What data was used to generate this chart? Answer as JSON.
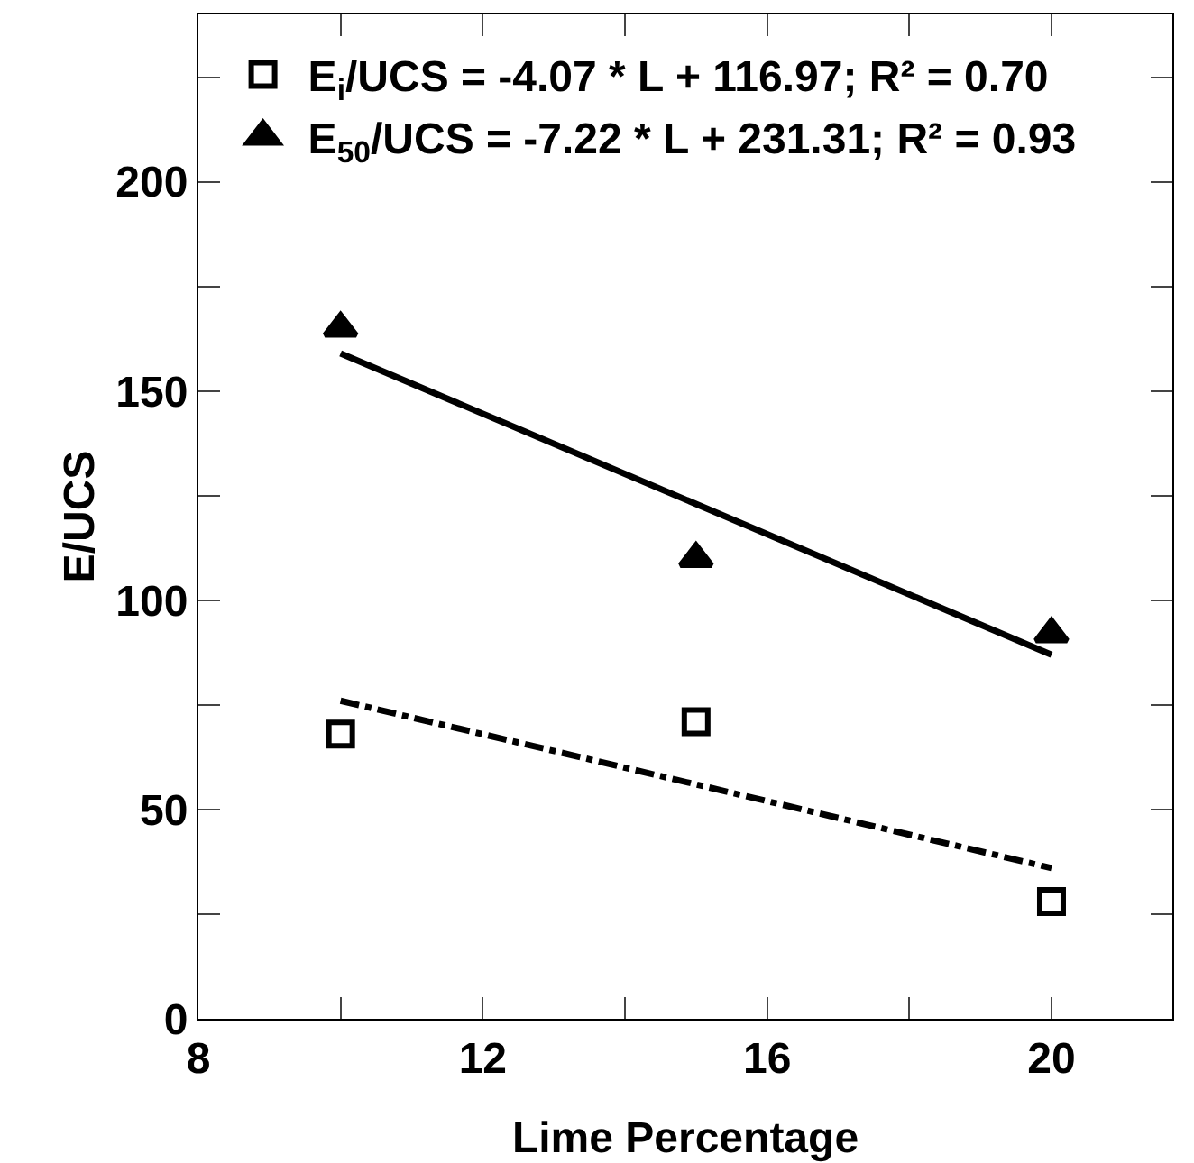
{
  "chart_data": {
    "type": "scatter",
    "xlabel": "Lime Percentage",
    "ylabel": "E/UCS",
    "x": [
      10,
      15,
      20
    ],
    "series": [
      {
        "name": "E$_{i}$/UCS = -4.07 * L + 116.97; R² = 0.70",
        "color": "#000000",
        "marker": "square",
        "values": [
          68,
          71,
          28
        ]
      },
      {
        "name": "E$_{50}$/UCS = -7.22 * L + 231.31; R² = 0.93",
        "color": "#000000",
        "marker": "triangle",
        "values": [
          165,
          110,
          92
        ]
      },
      {
        "type": "line",
        "color": "#000000",
        "line_style": "dashed",
        "marker": "none",
        "values": [
          76,
          null,
          36
        ]
      },
      {
        "type": "line",
        "color": "#000000",
        "line_style": "solid",
        "marker": "none",
        "values": [
          159,
          null,
          87
        ]
      }
    ],
    "xlim": [
      8,
      21.7
    ],
    "xticks": [
      8,
      {
        "value": 10,
        "label": null
      },
      12,
      {
        "value": 14,
        "label": null
      },
      16,
      {
        "value": 18,
        "label": null
      },
      20
    ],
    "ylim": [
      0,
      240
    ],
    "yticks": [
      0,
      {
        "value": 25,
        "label": null
      },
      50,
      {
        "value": 75,
        "label": null
      },
      100,
      {
        "value": 125,
        "label": null
      },
      150,
      {
        "value": 175,
        "label": null
      },
      200,
      {
        "value": 225,
        "label": null
      }
    ],
    "grid": false,
    "legend": "top left"
  }
}
